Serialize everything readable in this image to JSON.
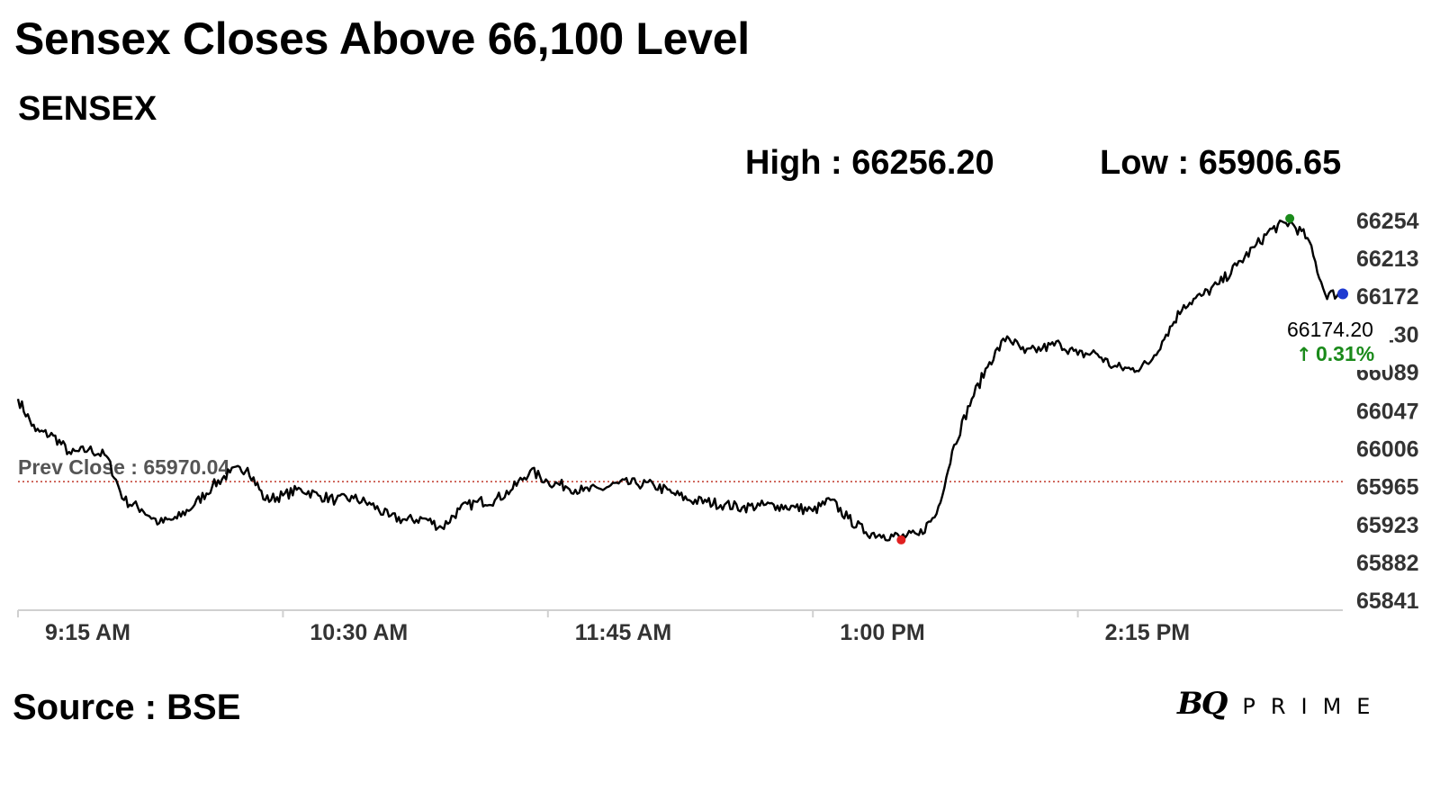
{
  "title": "Sensex Closes Above 66,100 Level",
  "subtitle": "SENSEX",
  "high_label": "High : 66256.20",
  "low_label": "Low : 65906.65",
  "source": "Source : BSE",
  "logo": {
    "mark": "BQ",
    "word": "PRIME"
  },
  "colors": {
    "line": "#000000",
    "prev_close": "#c0392b",
    "high_marker": "#1a8a1a",
    "low_marker": "#e02020",
    "last_marker": "#1f3ad1",
    "change_up": "#1a8a1a",
    "axis": "#d0d0d0"
  },
  "chart_data": {
    "type": "line",
    "title": "SENSEX",
    "xlabel": "",
    "ylabel": "",
    "x_ticks": [
      "9:15 AM",
      "10:30 AM",
      "11:45 AM",
      "1:00 PM",
      "2:15 PM"
    ],
    "y_ticks": [
      66254,
      66213,
      66172,
      66130,
      66089,
      66047,
      66006,
      65965,
      65923,
      65882,
      65841
    ],
    "ylim": [
      65841,
      66254
    ],
    "grid": false,
    "prev_close": {
      "label": "Prev Close : 65970.04",
      "value": 65970.04
    },
    "high": 66256.2,
    "low": 65906.65,
    "last": {
      "value_label": "66174.20",
      "change_label": "0.31%",
      "value": 66174.2
    },
    "series": [
      {
        "x": [
          "9:15",
          "9:20",
          "9:25",
          "9:30",
          "9:35",
          "9:40",
          "9:45",
          "9:50",
          "9:55",
          "10:00",
          "10:05",
          "10:10",
          "10:15",
          "10:20",
          "10:25",
          "10:30",
          "10:35",
          "10:40",
          "10:45",
          "10:50",
          "10:55",
          "11:00",
          "11:05",
          "11:10",
          "11:15",
          "11:20",
          "11:25",
          "11:30",
          "11:35",
          "11:40",
          "11:45",
          "11:50",
          "11:55",
          "12:00",
          "12:05",
          "12:10",
          "12:15",
          "12:20",
          "12:25",
          "12:30",
          "12:35",
          "12:40",
          "12:45",
          "12:50",
          "12:55",
          "13:00",
          "13:05",
          "13:10",
          "13:15",
          "13:20",
          "13:25",
          "13:30",
          "13:35",
          "13:40",
          "13:45",
          "13:50",
          "13:55",
          "14:00",
          "14:05",
          "14:10",
          "14:15",
          "14:20",
          "14:25",
          "14:30",
          "14:35",
          "14:40",
          "14:45",
          "14:50",
          "14:55",
          "15:00",
          "15:05",
          "15:10",
          "15:15",
          "15:20",
          "15:25",
          "15:30"
        ],
        "values": [
          66060,
          66025,
          66020,
          66000,
          66005,
          65998,
          65950,
          65940,
          65925,
          65930,
          65945,
          65965,
          65980,
          65985,
          65950,
          65955,
          65962,
          65955,
          65950,
          65952,
          65945,
          65932,
          65928,
          65930,
          65920,
          65940,
          65948,
          65950,
          65962,
          65982,
          65970,
          65965,
          65960,
          65962,
          65968,
          65968,
          65966,
          65958,
          65950,
          65948,
          65945,
          65942,
          65944,
          65944,
          65942,
          65938,
          65950,
          65930,
          65915,
          65912,
          65910,
          65912,
          65935,
          66010,
          66060,
          66100,
          66128,
          66110,
          66115,
          66120,
          66108,
          66110,
          66095,
          66092,
          66098,
          66130,
          66162,
          66172,
          66185,
          66205,
          66225,
          66245,
          66252,
          66235,
          66174,
          66174
        ]
      }
    ]
  }
}
